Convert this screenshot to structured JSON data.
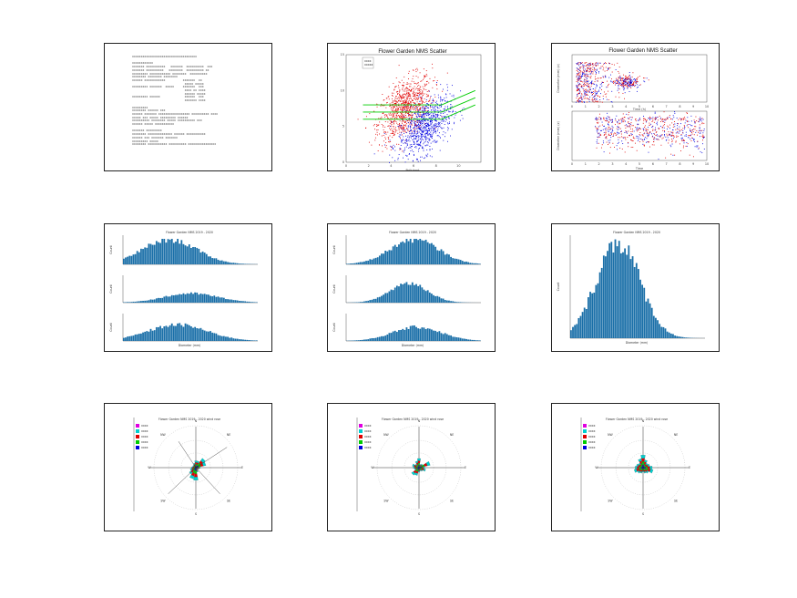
{
  "panels": [
    {
      "id": "summary",
      "type": "text",
      "lines": [
        "xxxxxxxxxxxxxxxxxxxxxxxxxxxxxxxxxxxxx",
        "",
        "xxxxxxxxxxxx",
        "xxxxxxx xxxxxxxxxxx   xxxxxxx  xxxxxxxxxx  xxx",
        "xxxxxxx xxxxxxxxxx   xxxxxxxx  xxxxxxxxxx xx",
        "xxxxxxxxx xxxxxxxxxxxx xxxxxxxx  xxxxxxxxxx",
        "xxxxxxxx xxxxxxxx xxxxxxxx",
        "xxxxxx xxxxxxxxxxxx          xxxxxxx  xx",
        "                              xxxxx xxxxx",
        "xxxxxxxxx xxxxxxx  xxxxx     xxxxxxx  xxx",
        "                              xxxx xx xxxx",
        "                              xxxxxx xxxxx",
        "xxxxxxxxx xxxxxx              xxxxxx  xxx",
        "                              xxxxxxx xxxx",
        "",
        "xxxxxxxxx",
        "xxxxxxxx xxxxxx xxx",
        "xxxxxx xxxxxxx xxxxxxxxxxxxxxxxxx xxxxxxxxxx xxxx",
        "xxxxx xxx xxxxx xxxxxxxxx xxxxxx",
        "xxxxxxxxxx xxxxxxxx xxxxx xxxxxxxxxx xxx",
        "xxxxxx xxxxx xxxxxxxxxxx",
        "",
        "xxxxxxx xxxxxxxxx",
        "xxxxxxxx xxxxxxxxxxxxxx xxxxxx xxxxxxxxxxx",
        "xxxxxx xxx xxxxxxx xxxxxxx",
        "xxxxxxxxx xxxxx",
        "xxxxxxxx xxxxxxxxxxx xxxxxxxxxx xxxxxxxxxxxxxxxx"
      ]
    },
    {
      "id": "scatter-main",
      "type": "scatter",
      "chart_data": {
        "type": "scatter",
        "title": "Flower Garden NMS Scatter",
        "xlabel": "Pollutant",
        "ylabel": "",
        "xlim": [
          0,
          12
        ],
        "ylim": [
          0,
          15
        ],
        "x_ticks": [
          "0",
          "2",
          "4",
          "6",
          "8",
          "10"
        ],
        "y_ticks": [
          "0",
          "5",
          "10",
          "15"
        ],
        "legend": [
          "xxxx",
          "xxxxx"
        ],
        "series": [
          {
            "color": "#e00000",
            "cluster": {
              "cx": 5.2,
              "cy": 7.5,
              "sx": 1.2,
              "sy": 2.0,
              "n": 900
            }
          },
          {
            "color": "#0000e0",
            "cluster": {
              "cx": 7.0,
              "cy": 5.0,
              "sx": 1.2,
              "sy": 1.8,
              "n": 800
            }
          }
        ],
        "lines": [
          {
            "color": "#00cc00",
            "points": [
              [
                1.5,
                6.0
              ],
              [
                8.5,
                6.0
              ],
              [
                11.5,
                8.0
              ]
            ]
          },
          {
            "color": "#00cc00",
            "points": [
              [
                1.5,
                7.0
              ],
              [
                8.5,
                7.0
              ],
              [
                11.5,
                9.0
              ]
            ]
          },
          {
            "color": "#00cc00",
            "points": [
              [
                1.5,
                8.0
              ],
              [
                8.5,
                8.0
              ],
              [
                11.5,
                10.0
              ]
            ]
          }
        ]
      }
    },
    {
      "id": "scatter-stacked",
      "type": "scatter2",
      "chart_data": {
        "type": "scatter",
        "title": "Flower Garden NMS Scatter",
        "x_ticks": [
          "0",
          "1",
          "2",
          "3",
          "4",
          "5",
          "6",
          "7",
          "8",
          "9",
          "10"
        ],
        "xlabel_top": "Time (h)",
        "xlabel_bottom": "Time",
        "ylabel_top": "Diameter (mm) (z)",
        "ylabel_bottom": "Diameter (mm) (z)"
      }
    },
    {
      "id": "hist-stack-1",
      "type": "histstack",
      "chart_data": {
        "type": "bar",
        "title": "Flower Garden NMS 2019 - 2020",
        "ylabel": "Count",
        "xlabel": "Diameter (mm)",
        "series": [
          {
            "peak": 0.34,
            "spread": 0.2,
            "height": 1.0
          },
          {
            "peak": 0.5,
            "spread": 0.2,
            "height": 0.4
          },
          {
            "peak": 0.4,
            "spread": 0.22,
            "height": 0.7
          }
        ]
      }
    },
    {
      "id": "hist-stack-2",
      "type": "histstack",
      "chart_data": {
        "type": "bar",
        "title": "Flower Garden NMS 2019 - 2020",
        "ylabel": "Count",
        "xlabel": "Diameter (mm)",
        "series": [
          {
            "peak": 0.5,
            "spread": 0.18,
            "height": 1.0
          },
          {
            "peak": 0.46,
            "spread": 0.14,
            "height": 0.85
          },
          {
            "peak": 0.52,
            "spread": 0.18,
            "height": 0.6
          }
        ]
      }
    },
    {
      "id": "hist-single",
      "type": "hist",
      "chart_data": {
        "type": "bar",
        "title": "Flower Garden NMS 2019 - 2020",
        "ylabel": "Count",
        "xlabel": "Diameter (mm)",
        "series": [
          {
            "peak": 0.35,
            "spread": 0.16,
            "height": 1.0
          }
        ]
      }
    },
    {
      "id": "rose-1",
      "type": "rose",
      "chart_data": {
        "type": "bar",
        "title": "Flower Garden NMS 2019 - 2020 wind rose",
        "legend": [
          "xxxx",
          "xxxx",
          "xxxx",
          "xxxx",
          "xxxx"
        ],
        "legend_colors": [
          "#e000e0",
          "#00d0d0",
          "#e00000",
          "#00cc00",
          "#0000e0"
        ],
        "directions": [
          "N",
          "NE",
          "E",
          "SE",
          "S",
          "SW",
          "W",
          "NW"
        ],
        "petals": [
          0.3,
          0.3,
          0.5,
          0.45,
          0.2,
          0.15,
          0.1,
          0.2,
          0.55,
          0.5,
          0.35,
          0.25,
          0.2,
          0.15,
          0.15,
          0.2
        ],
        "arrows": true
      }
    },
    {
      "id": "rose-2",
      "type": "rose",
      "chart_data": {
        "type": "bar",
        "title": "Flower Garden NMS 2019 - 2020 wind rose",
        "legend": [
          "xxxx",
          "xxxx",
          "xxxx",
          "xxxx",
          "xxxx"
        ],
        "legend_colors": [
          "#e000e0",
          "#00d0d0",
          "#e00000",
          "#00cc00",
          "#0000e0"
        ],
        "directions": [
          "N",
          "NE",
          "E",
          "SE",
          "S",
          "SW",
          "W",
          "NW"
        ],
        "petals": [
          0.4,
          0.15,
          0.2,
          0.5,
          0.25,
          0.3,
          0.2,
          0.15,
          0.2,
          0.35,
          0.4,
          0.2,
          0.25,
          0.3,
          0.2,
          0.3
        ],
        "arrows": false
      }
    },
    {
      "id": "rose-3",
      "type": "rose",
      "chart_data": {
        "type": "bar",
        "title": "Flower Garden NMS 2019 - 2020 wind rose",
        "legend": [
          "xxxx",
          "xxxx",
          "xxxx",
          "xxxx",
          "xxxx"
        ],
        "legend_colors": [
          "#e000e0",
          "#00d0d0",
          "#e00000",
          "#00cc00",
          "#0000e0"
        ],
        "directions": [
          "N",
          "NE",
          "E",
          "SE",
          "S",
          "SW",
          "W",
          "NW"
        ],
        "petals": [
          0.55,
          0.35,
          0.25,
          0.3,
          0.4,
          0.45,
          0.3,
          0.25,
          0.2,
          0.25,
          0.3,
          0.4,
          0.35,
          0.3,
          0.25,
          0.4
        ],
        "arrows": false
      }
    }
  ]
}
